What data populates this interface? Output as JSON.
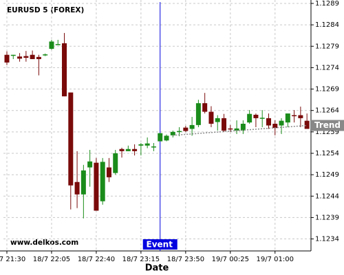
{
  "chart_data": {
    "type": "candlestick",
    "title": "EURUSD 5 (FOREX)",
    "watermark": "www.delkos.com",
    "x_label": "Date",
    "categories": [
      "18/7 21:30",
      null,
      null,
      null,
      null,
      null,
      null,
      "18/7 22:05",
      null,
      null,
      null,
      null,
      null,
      null,
      "18/7 22:40",
      null,
      null,
      null,
      null,
      null,
      null,
      "18/7 23:15",
      null,
      null,
      null,
      null,
      null,
      null,
      "18/7 23:50",
      null,
      null,
      null,
      null,
      null,
      null,
      "19/7 00:25",
      null,
      null,
      null,
      null,
      null,
      null,
      "19/7 01:00",
      null,
      null,
      null,
      null,
      null
    ],
    "open": [
      1.1277,
      1.1277,
      1.12766,
      1.12767,
      1.1277,
      1.12765,
      1.1277,
      1.12784,
      1.12794,
      1.12797,
      1.12682,
      1.12473,
      1.12444,
      1.12507,
      1.12518,
      1.12428,
      1.12507,
      1.12494,
      1.1255,
      1.12545,
      1.1255,
      1.12558,
      1.12558,
      1.12555,
      1.12568,
      1.1257,
      1.12582,
      1.12591,
      1.126,
      1.12597,
      1.12606,
      1.12657,
      1.12637,
      1.12613,
      1.12622,
      1.12598,
      1.12593,
      1.12593,
      1.12612,
      1.1263,
      1.12622,
      1.12622,
      1.12609,
      1.12605,
      1.12612,
      1.12629,
      1.12629,
      1.12616
    ],
    "high": [
      1.12778,
      1.1277,
      1.12774,
      1.12779,
      1.1278,
      1.1277,
      1.12773,
      1.12805,
      1.12805,
      1.12821,
      1.12682,
      1.12545,
      1.12513,
      1.12548,
      1.12529,
      1.12529,
      1.12529,
      1.12548,
      1.12553,
      1.12558,
      1.12561,
      1.12564,
      1.12577,
      1.12564,
      1.12587,
      1.12584,
      1.12593,
      1.12601,
      1.12604,
      1.12625,
      1.12665,
      1.12681,
      1.1265,
      1.12629,
      1.12632,
      1.12606,
      1.12617,
      1.12617,
      1.12641,
      1.12633,
      1.12641,
      1.12633,
      1.12617,
      1.12622,
      1.12633,
      1.12641,
      1.12649,
      1.12633
    ],
    "low": [
      1.12746,
      1.1276,
      1.12754,
      1.12754,
      1.1276,
      1.12722,
      1.12767,
      1.12782,
      1.12794,
      1.12673,
      1.12409,
      1.12412,
      1.12388,
      1.12462,
      1.12406,
      1.1242,
      1.12473,
      1.1249,
      1.1253,
      1.12545,
      1.12535,
      1.12535,
      1.12552,
      1.12545,
      1.12568,
      1.12568,
      1.12577,
      1.1258,
      1.1259,
      1.12581,
      1.12601,
      1.12633,
      1.12601,
      1.12593,
      1.1259,
      1.1259,
      1.12585,
      1.12585,
      1.12609,
      1.12601,
      1.12601,
      1.12597,
      1.12582,
      1.12585,
      1.12601,
      1.12612,
      1.12601,
      1.12597
    ],
    "close": [
      1.12752,
      1.1277,
      1.12761,
      1.12763,
      1.1276,
      1.1276,
      1.12771,
      1.12801,
      1.12795,
      1.12673,
      1.12465,
      1.12444,
      1.125,
      1.12521,
      1.12406,
      1.1252,
      1.12484,
      1.1254,
      1.12545,
      1.1255,
      1.12545,
      1.12561,
      1.12563,
      1.12556,
      1.12587,
      1.12581,
      1.1259,
      1.12592,
      1.12592,
      1.12606,
      1.12657,
      1.12637,
      1.12609,
      1.12622,
      1.12593,
      1.12597,
      1.12598,
      1.12609,
      1.12632,
      1.12622,
      1.12623,
      1.12605,
      1.12599,
      1.12616,
      1.12633,
      1.12628,
      1.12622,
      1.12597
    ],
    "up_color": "#1a8c1a",
    "down_color": "#7a0a0a",
    "ylim": [
      1.12312,
      1.12898
    ],
    "yticks": [
      1.1234,
      1.1239,
      1.1244,
      1.1249,
      1.1254,
      1.1259,
      1.1264,
      1.1269,
      1.1274,
      1.1279,
      1.1284,
      1.1289
    ],
    "grid": true,
    "event": {
      "label": "Event",
      "index": 24,
      "color": "#0000e0"
    },
    "trend": {
      "label": "Trend",
      "x_start": 26,
      "x_end": 47,
      "y_start": 1.12582,
      "y_end": 1.12605,
      "color": "#888888"
    }
  }
}
